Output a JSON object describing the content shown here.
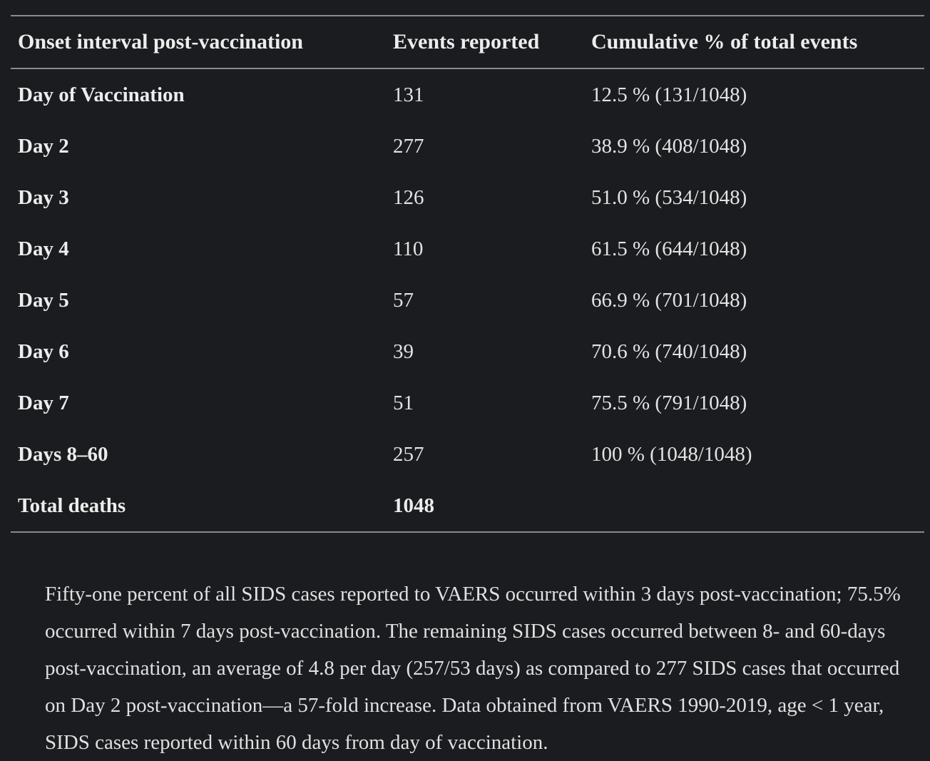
{
  "table": {
    "headers": [
      "Onset interval post-vaccination",
      "Events reported",
      "Cumulative % of total events"
    ],
    "rows": [
      {
        "interval": "Day of Vaccination",
        "events": "131",
        "cumulative": "12.5 % (131/1048)"
      },
      {
        "interval": "Day 2",
        "events": "277",
        "cumulative": "38.9 % (408/1048)"
      },
      {
        "interval": "Day 3",
        "events": "126",
        "cumulative": "51.0 % (534/1048)"
      },
      {
        "interval": "Day 4",
        "events": "110",
        "cumulative": "61.5 % (644/1048)"
      },
      {
        "interval": "Day 5",
        "events": "57",
        "cumulative": "66.9 % (701/1048)"
      },
      {
        "interval": "Day 6",
        "events": "39",
        "cumulative": "70.6 % (740/1048)"
      },
      {
        "interval": "Day 7",
        "events": "51",
        "cumulative": "75.5 % (791/1048)"
      },
      {
        "interval": "Days 8–60",
        "events": "257",
        "cumulative": "100 % (1048/1048)"
      },
      {
        "interval": "Total deaths",
        "events": "1048",
        "cumulative": ""
      }
    ]
  },
  "caption": "Fifty-one percent of all SIDS cases reported to VAERS occurred within 3 days post-vaccination; 75.5% occurred within 7 days post-vaccination. The remaining SIDS cases occurred between 8- and 60-days post-vaccination, an average of 4.8 per day (257/53 days) as compared to 277 SIDS cases that occurred on Day 2 post-vaccination—a 57-fold increase. Data obtained from VAERS 1990-2019, age < 1 year, SIDS cases reported within 60 days from day of vaccination."
}
